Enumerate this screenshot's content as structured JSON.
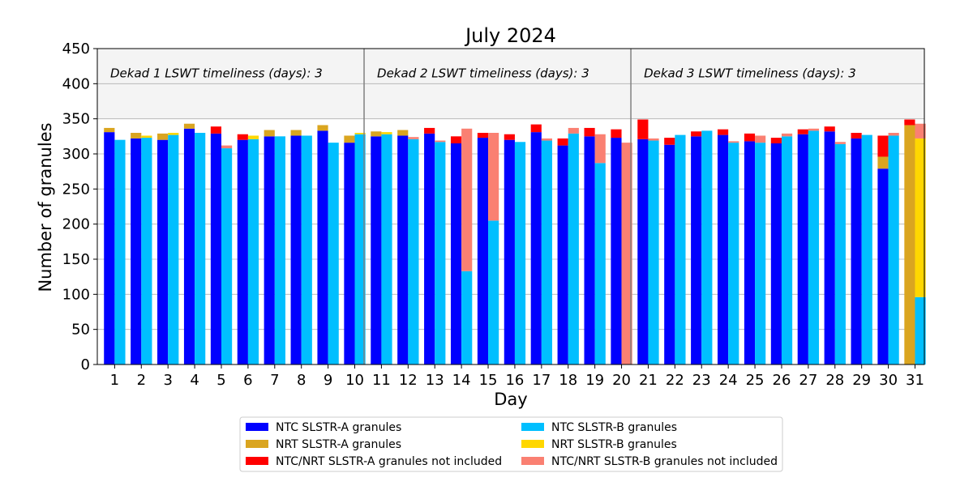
{
  "chart_data": {
    "type": "bar",
    "title": "July 2024",
    "xlabel": "Day",
    "ylabel": "Number of granules",
    "ylim": [
      0,
      450
    ],
    "xlim": [
      0.35,
      31.35
    ],
    "yticks": [
      0,
      50,
      100,
      150,
      200,
      250,
      300,
      350,
      400,
      450
    ],
    "grid": true,
    "legend_placement": "bottom-center",
    "days": [
      1,
      2,
      3,
      4,
      5,
      6,
      7,
      8,
      9,
      10,
      11,
      12,
      13,
      14,
      15,
      16,
      17,
      18,
      19,
      20,
      21,
      22,
      23,
      24,
      25,
      26,
      27,
      28,
      29,
      30,
      31
    ],
    "series": [
      {
        "name": "NTC SLSTR-A granules",
        "color": "#0000ff",
        "sensor": "A",
        "values": [
          331,
          322,
          320,
          336,
          329,
          320,
          325,
          326,
          333,
          316,
          325,
          326,
          329,
          315,
          323,
          320,
          331,
          312,
          325,
          323,
          321,
          313,
          325,
          327,
          318,
          315,
          328,
          332,
          322,
          279,
          0
        ]
      },
      {
        "name": "NRT SLSTR-A granules",
        "color": "#daa520",
        "sensor": "A",
        "values": [
          6,
          8,
          9,
          7,
          0,
          0,
          9,
          8,
          8,
          10,
          7,
          8,
          0,
          0,
          0,
          0,
          0,
          0,
          0,
          0,
          0,
          0,
          0,
          0,
          0,
          0,
          0,
          0,
          0,
          17,
          341
        ]
      },
      {
        "name": "NTC/NRT SLSTR-A granules not included",
        "color": "#ff0000",
        "sensor": "A",
        "values": [
          0,
          0,
          0,
          0,
          10,
          8,
          0,
          0,
          0,
          0,
          0,
          0,
          8,
          10,
          7,
          8,
          11,
          10,
          12,
          12,
          28,
          10,
          7,
          8,
          11,
          8,
          7,
          7,
          8,
          30,
          8
        ]
      },
      {
        "name": "NTC SLSTR-B granules",
        "color": "#00bfff",
        "sensor": "B",
        "values": [
          320,
          323,
          327,
          330,
          308,
          321,
          325,
          326,
          316,
          328,
          328,
          321,
          317,
          133,
          205,
          317,
          319,
          329,
          287,
          0,
          319,
          327,
          333,
          316,
          316,
          325,
          333,
          314,
          327,
          326,
          96
        ]
      },
      {
        "name": "NRT SLSTR-B granules",
        "color": "#ffd700",
        "sensor": "B",
        "values": [
          0,
          3,
          3,
          0,
          0,
          5,
          0,
          0,
          0,
          2,
          3,
          0,
          0,
          0,
          0,
          0,
          0,
          0,
          0,
          0,
          0,
          0,
          0,
          0,
          0,
          0,
          0,
          0,
          0,
          0,
          226
        ]
      },
      {
        "name": "NTC/NRT SLSTR-B granules not included",
        "color": "#fa8072",
        "sensor": "B",
        "values": [
          0,
          0,
          0,
          0,
          4,
          0,
          0,
          0,
          0,
          0,
          0,
          3,
          2,
          203,
          125,
          0,
          3,
          8,
          41,
          316,
          3,
          0,
          0,
          2,
          10,
          4,
          3,
          3,
          0,
          4,
          21
        ]
      }
    ],
    "dekads": [
      {
        "label": "Dekad 1 LSWT timeliness (days): 3",
        "start": 0.35,
        "end": 10.35
      },
      {
        "label": "Dekad 2 LSWT timeliness (days): 3",
        "start": 10.35,
        "end": 20.35
      },
      {
        "label": "Dekad 3 LSWT timeliness (days): 3",
        "start": 20.35,
        "end": 31.35
      }
    ],
    "band_range": [
      350,
      450
    ],
    "band_color": "#f4f4f4"
  }
}
